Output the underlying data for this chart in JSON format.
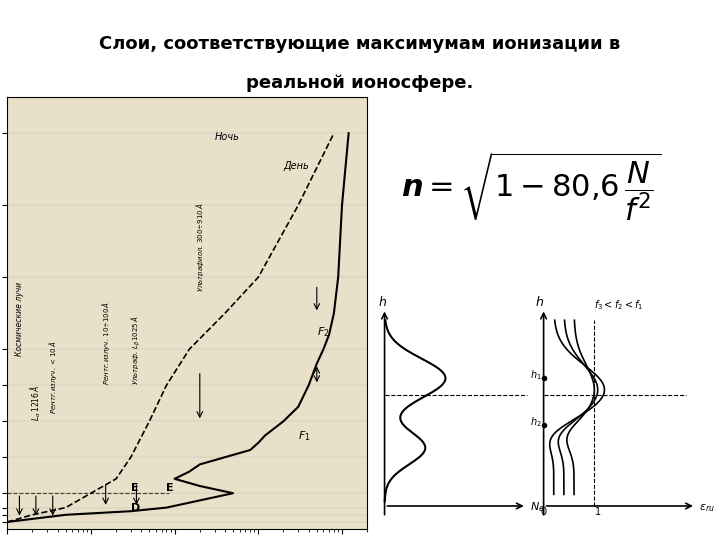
{
  "title": "Слои, соответствующие максимумам ионизации в\nреальной ионосфере.",
  "title_bg": "#b0d0e0",
  "bg_color": "#e8e0c8",
  "paper_color": "#e8e0c8",
  "formula_text": "$n = \\sqrt{1 - 80{,}6\\,\\dfrac{N}{f^2}}$",
  "bottom_label": "$N\\,(1/cm^3)$",
  "left_label": "$h,\\,км$"
}
